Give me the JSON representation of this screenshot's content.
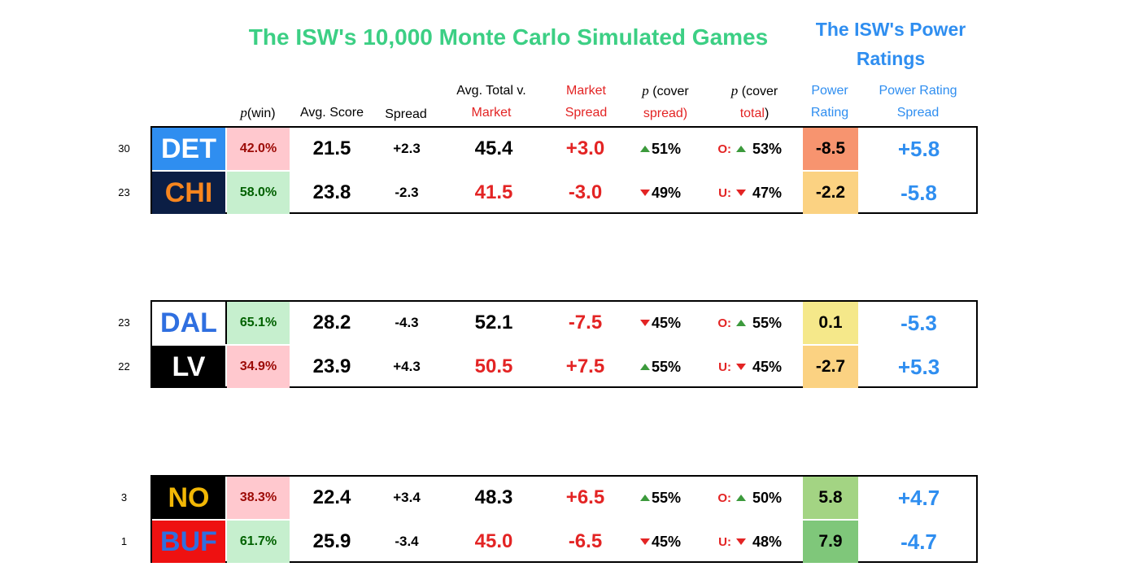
{
  "title": "The ISW's 10,000 Monte Carlo Simulated Games",
  "power_title_line1": "The ISW's Power",
  "power_title_line2": "Ratings",
  "headers": {
    "pwin_p": "p",
    "pwin_rest": "(win)",
    "avg_score": "Avg. Score",
    "spread": "Spread",
    "avg_total_1": "Avg. Total v.",
    "avg_total_2": "Market",
    "market_spread_1": "Market",
    "market_spread_2": "Spread",
    "cover_spread_p": "p",
    "cover_spread_1": "(cover",
    "cover_spread_2": "spread)",
    "cover_total_p": "p",
    "cover_total_1": "(cover",
    "cover_total_2a": "total",
    "cover_total_2b": ")",
    "power_rating_1": "Power",
    "power_rating_2": "Rating",
    "power_spread_1": "Power Rating",
    "power_spread_2": "Spread"
  },
  "games": [
    {
      "teams": [
        {
          "rank": "30",
          "team": "DET",
          "team_bg": "#2f8ef0",
          "team_color": "#ffffff",
          "pwin": "42.0%",
          "pwin_bg": "#ffc8ce",
          "pwin_color": "#9c0a06",
          "avg": "21.5",
          "spread": "+2.3",
          "total": "45.4",
          "total_color": "#000000",
          "mspread": "+3.0",
          "pcs_dir": "up",
          "pcs": "51%",
          "ou": "O:",
          "pct_dir": "up",
          "pct": "53%",
          "pr": "-8.5",
          "pr_bg": "#f7946f",
          "prs": "+5.8"
        },
        {
          "rank": "23",
          "team": "CHI",
          "team_bg": "#0b1e45",
          "team_color": "#f7851e",
          "pwin": "58.0%",
          "pwin_bg": "#c6efce",
          "pwin_color": "#006100",
          "avg": "23.8",
          "spread": "-2.3",
          "total": "41.5",
          "total_color": "#e32424",
          "mspread": "-3.0",
          "pcs_dir": "down",
          "pcs": "49%",
          "ou": "U:",
          "pct_dir": "down",
          "pct": "47%",
          "pr": "-2.2",
          "pr_bg": "#fbd282",
          "prs": "-5.8"
        }
      ]
    },
    {
      "teams": [
        {
          "rank": "23",
          "team": "DAL",
          "team_bg": "#ffffff",
          "team_color": "#2f6fe0",
          "pwin": "65.1%",
          "pwin_bg": "#c6efce",
          "pwin_color": "#006100",
          "avg": "28.2",
          "spread": "-4.3",
          "total": "52.1",
          "total_color": "#000000",
          "mspread": "-7.5",
          "pcs_dir": "down",
          "pcs": "45%",
          "ou": "O:",
          "pct_dir": "up",
          "pct": "55%",
          "pr": "0.1",
          "pr_bg": "#f5e88a",
          "prs": "-5.3"
        },
        {
          "rank": "22",
          "team": "LV",
          "team_bg": "#000000",
          "team_color": "#ffffff",
          "pwin": "34.9%",
          "pwin_bg": "#ffc8ce",
          "pwin_color": "#9c0a06",
          "avg": "23.9",
          "spread": "+4.3",
          "total": "50.5",
          "total_color": "#e32424",
          "mspread": "+7.5",
          "pcs_dir": "up",
          "pcs": "55%",
          "ou": "U:",
          "pct_dir": "down",
          "pct": "45%",
          "pr": "-2.7",
          "pr_bg": "#fbd282",
          "prs": "+5.3"
        }
      ]
    },
    {
      "teams": [
        {
          "rank": "3",
          "team": "NO",
          "team_bg": "#000000",
          "team_color": "#f2b705",
          "pwin": "38.3%",
          "pwin_bg": "#ffc8ce",
          "pwin_color": "#9c0a06",
          "avg": "22.4",
          "spread": "+3.4",
          "total": "48.3",
          "total_color": "#000000",
          "mspread": "+6.5",
          "pcs_dir": "up",
          "pcs": "55%",
          "ou": "O:",
          "pct_dir": "up",
          "pct": "50%",
          "pr": "5.8",
          "pr_bg": "#a3d483",
          "prs": "+4.7"
        },
        {
          "rank": "1",
          "team": "BUF",
          "team_bg": "#ee1111",
          "team_color": "#2f6fe0",
          "pwin": "61.7%",
          "pwin_bg": "#c6efce",
          "pwin_color": "#006100",
          "avg": "25.9",
          "spread": "-3.4",
          "total": "45.0",
          "total_color": "#e32424",
          "mspread": "-6.5",
          "pcs_dir": "down",
          "pcs": "45%",
          "ou": "U:",
          "pct_dir": "down",
          "pct": "48%",
          "pr": "7.9",
          "pr_bg": "#7fc77a",
          "prs": "-4.7"
        }
      ]
    }
  ]
}
